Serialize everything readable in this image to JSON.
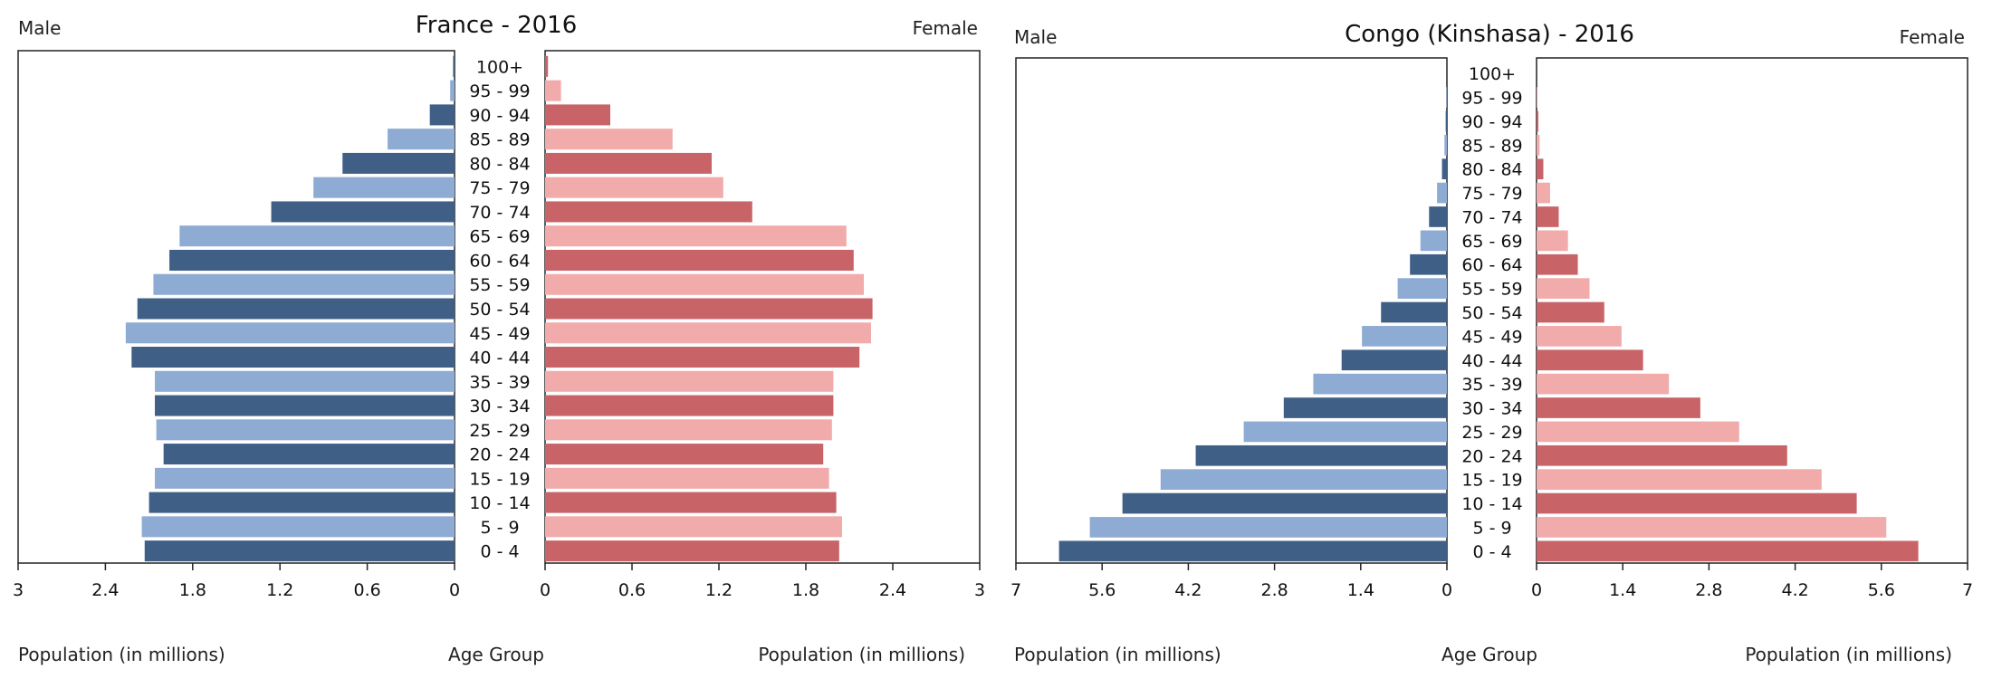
{
  "colors": {
    "male_dark": "#3f5f86",
    "male_light": "#8eabd3",
    "female_dark": "#c86468",
    "female_light": "#f1abab"
  },
  "chart_data": [
    {
      "type": "bar",
      "title": "France - 2016",
      "left_label": "Male",
      "right_label": "Female",
      "xlabel_left": "Population (in millions)",
      "xlabel_center": "Age Group",
      "xlabel_right": "Population (in millions)",
      "xlim": [
        0,
        3
      ],
      "ticks_left": [
        "3",
        "2.4",
        "1.8",
        "1.2",
        "0.6",
        "0"
      ],
      "ticks_right": [
        "0",
        "0.6",
        "1.2",
        "1.8",
        "2.4",
        "3"
      ],
      "tick_values": [
        3,
        2.4,
        1.8,
        1.2,
        0.6,
        0
      ],
      "tick_values_right": [
        0,
        0.6,
        1.2,
        1.8,
        2.4,
        3
      ],
      "categories": [
        "100+",
        "95 - 99",
        "90 - 94",
        "85 - 89",
        "80 - 84",
        "75 - 79",
        "70 - 74",
        "65 - 69",
        "60 - 64",
        "55 - 59",
        "50 - 54",
        "45 - 49",
        "40 - 44",
        "35 - 39",
        "30 - 34",
        "25 - 29",
        "20 - 24",
        "15 - 19",
        "10 - 14",
        "5 - 9",
        "0 - 4"
      ],
      "series": [
        {
          "name": "Male",
          "values": [
            0.01,
            0.03,
            0.17,
            0.46,
            0.77,
            0.97,
            1.26,
            1.89,
            1.96,
            2.07,
            2.18,
            2.26,
            2.22,
            2.06,
            2.06,
            2.05,
            2.0,
            2.06,
            2.1,
            2.15,
            2.13
          ]
        },
        {
          "name": "Female",
          "values": [
            0.02,
            0.11,
            0.45,
            0.88,
            1.15,
            1.23,
            1.43,
            2.08,
            2.13,
            2.2,
            2.26,
            2.25,
            2.17,
            1.99,
            1.99,
            1.98,
            1.92,
            1.96,
            2.01,
            2.05,
            2.03
          ]
        }
      ]
    },
    {
      "type": "bar",
      "title": "Congo (Kinshasa) - 2016",
      "left_label": "Male",
      "right_label": "Female",
      "xlabel_left": "Population (in millions)",
      "xlabel_center": "Age Group",
      "xlabel_right": "Population (in millions)",
      "xlim": [
        0,
        7
      ],
      "ticks_left": [
        "7",
        "5.6",
        "4.2",
        "2.8",
        "1.4",
        "0"
      ],
      "ticks_right": [
        "0",
        "1.4",
        "2.8",
        "4.2",
        "5.6",
        "7"
      ],
      "tick_values": [
        7,
        5.6,
        4.2,
        2.8,
        1.4,
        0
      ],
      "tick_values_right": [
        0,
        1.4,
        2.8,
        4.2,
        5.6,
        7
      ],
      "categories": [
        "100+",
        "95 - 99",
        "90 - 94",
        "85 - 89",
        "80 - 84",
        "75 - 79",
        "70 - 74",
        "65 - 69",
        "60 - 64",
        "55 - 59",
        "50 - 54",
        "45 - 49",
        "40 - 44",
        "35 - 39",
        "30 - 34",
        "25 - 29",
        "20 - 24",
        "15 - 19",
        "10 - 14",
        "5 - 9",
        "0 - 4"
      ],
      "series": [
        {
          "name": "Male",
          "values": [
            0.0,
            0.01,
            0.02,
            0.04,
            0.08,
            0.16,
            0.29,
            0.43,
            0.6,
            0.8,
            1.07,
            1.38,
            1.71,
            2.17,
            2.65,
            3.3,
            4.08,
            4.65,
            5.27,
            5.8,
            6.3
          ]
        },
        {
          "name": "Female",
          "values": [
            0.0,
            0.01,
            0.03,
            0.05,
            0.11,
            0.22,
            0.36,
            0.51,
            0.67,
            0.86,
            1.1,
            1.38,
            1.73,
            2.15,
            2.66,
            3.29,
            4.07,
            4.63,
            5.2,
            5.68,
            6.2
          ]
        }
      ]
    }
  ]
}
